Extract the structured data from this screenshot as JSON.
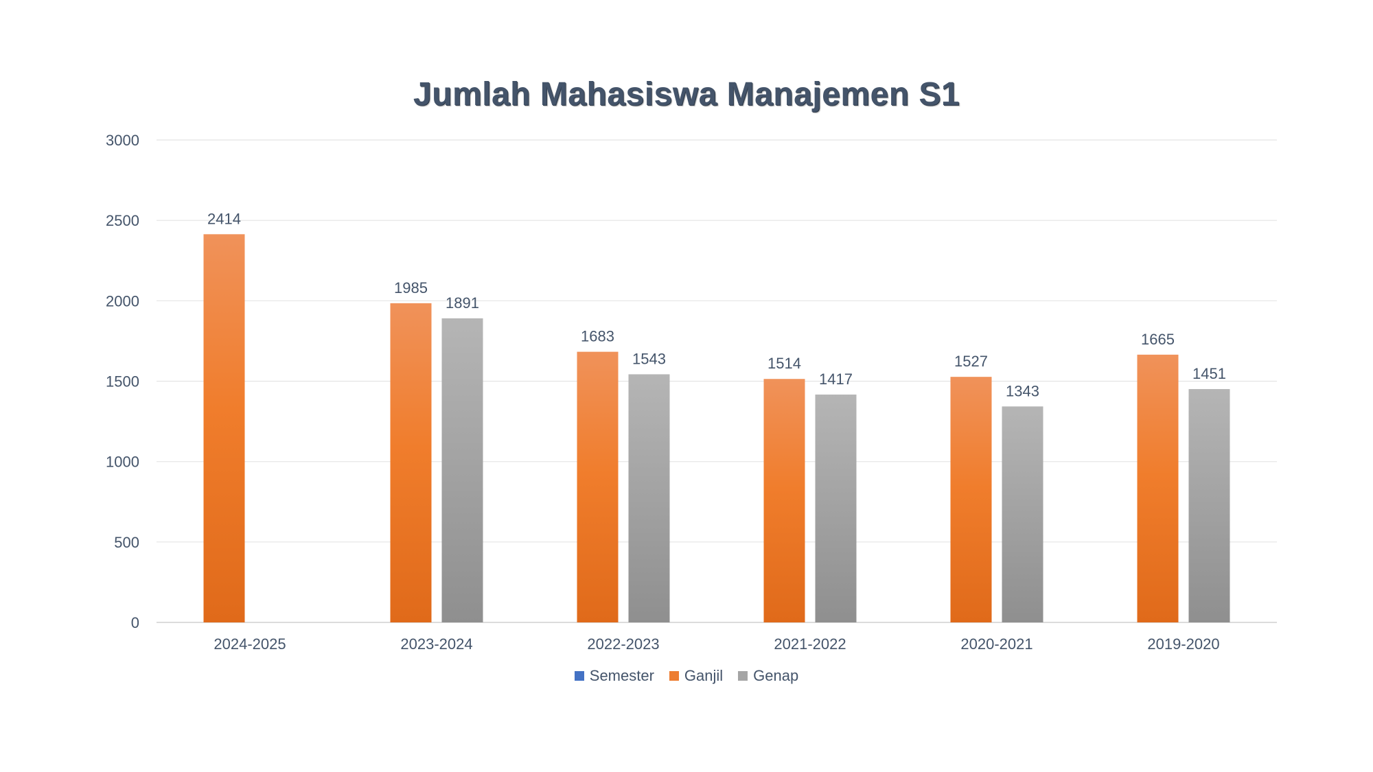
{
  "chart_data": {
    "type": "bar",
    "title": "Jumlah Mahasiswa Manajemen S1",
    "xlabel": "",
    "ylabel": "",
    "categories": [
      "2024-2025",
      "2023-2024",
      "2022-2023",
      "2021-2022",
      "2020-2021",
      "2019-2020"
    ],
    "series": [
      {
        "name": "Semester",
        "values": [
          null,
          null,
          null,
          null,
          null,
          null
        ],
        "color": "#4472c4"
      },
      {
        "name": "Ganjil",
        "values": [
          2414,
          1985,
          1683,
          1514,
          1527,
          1665
        ],
        "color": "#ed7d31"
      },
      {
        "name": "Genap",
        "values": [
          null,
          1891,
          1543,
          1417,
          1343,
          1451
        ],
        "color": "#a5a5a5"
      }
    ],
    "ylim": [
      0,
      3000
    ],
    "yticks": [
      0,
      500,
      1000,
      1500,
      2000,
      2500,
      3000
    ],
    "grid": true,
    "legend_position": "bottom",
    "data_labels": true
  }
}
